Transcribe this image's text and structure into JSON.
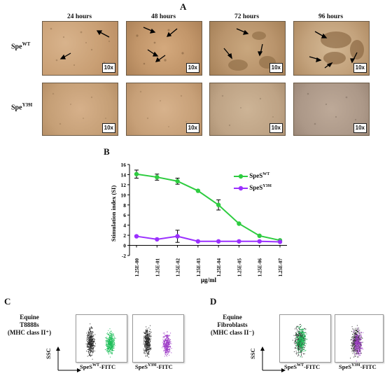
{
  "panels": {
    "a": "A",
    "b": "B",
    "c": "C",
    "d": "D"
  },
  "panel_a": {
    "columns": [
      "24 hours",
      "48 hours",
      "72 hours",
      "96 hours"
    ],
    "rows": [
      {
        "label": "Spe",
        "sup": "WT",
        "suffix": ""
      },
      {
        "label": "Spe",
        "sup": "Y39I",
        "suffix": ""
      }
    ],
    "magnification": "10x"
  },
  "chart_data": {
    "type": "line",
    "categories": [
      "1.25E-00",
      "1.25E-01",
      "1.25E-02",
      "1.25E-03",
      "1.25E-04",
      "1.25E-05",
      "1.25E-06",
      "1.25E-07"
    ],
    "series": [
      {
        "name": "SpeS",
        "name_sup": "WT",
        "color": "#2ecc40",
        "values": [
          14.1,
          13.5,
          12.7,
          10.8,
          8.0,
          4.3,
          1.9,
          1.0
        ],
        "errors": [
          0.8,
          0.6,
          0.6,
          0,
          1.0,
          0,
          0,
          0
        ]
      },
      {
        "name": "SpeS",
        "name_sup": "Y39I",
        "color": "#9b30ff",
        "values": [
          1.8,
          1.2,
          1.8,
          0.8,
          0.8,
          0.8,
          0.8,
          0.7
        ],
        "errors": [
          0,
          0,
          1.2,
          0,
          0,
          0,
          0,
          0
        ]
      }
    ],
    "ylabel": "Stimulation index (SI)",
    "xlabel": "μg/ml",
    "ylim": [
      -2,
      16
    ],
    "yticks": [
      -2,
      0,
      2,
      4,
      6,
      8,
      10,
      12,
      14,
      16
    ],
    "legend": "right"
  },
  "panel_c": {
    "title_lines": [
      "Equine",
      "T8888s",
      "(MHC class II⁺)"
    ],
    "y_axis": "SSC",
    "plots": [
      {
        "label": "SpeS",
        "sup": "WT",
        "suffix": "-FITC",
        "color": "#1fbf5a"
      },
      {
        "label": "SpeS",
        "sup": "Y39I",
        "suffix": "-FITC",
        "color": "#a040c8"
      }
    ]
  },
  "panel_d": {
    "title_lines": [
      "Equine",
      "Fibroblasts",
      "(MHC class II⁻)"
    ],
    "y_axis": "SSC",
    "plots": [
      {
        "label": "SpeS",
        "sup": "WT",
        "suffix": "-FITC",
        "color": "#1fbf5a"
      },
      {
        "label": "SpeS",
        "sup": "Y39I",
        "suffix": "-FITC",
        "color": "#a040c8"
      }
    ]
  }
}
